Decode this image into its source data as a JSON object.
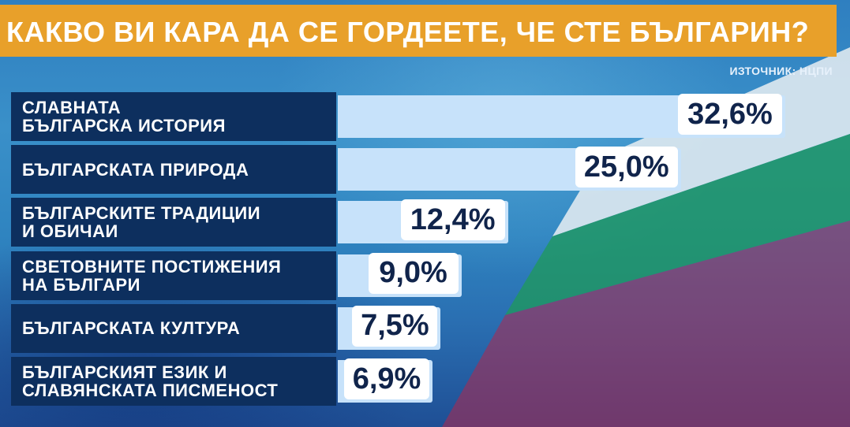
{
  "header": {
    "title": "КАКВО ВИ КАРА ДА СЕ ГОРДЕЕТЕ, ЧЕ СТЕ БЪЛГАРИН?",
    "source": "ИЗТОЧНИК: НЦПИ"
  },
  "colors": {
    "title_bar": "#e8a02a",
    "label_bg": "#0d2f5e",
    "bar": "#c7e2fa",
    "value_text": "#10244b"
  },
  "chart_data": {
    "type": "bar",
    "orientation": "horizontal",
    "title": "КАКВО ВИ КАРА ДА СЕ ГОРДЕЕТЕ, ЧЕ СТЕ БЪЛГАРИН?",
    "categories": [
      "СЛАВНАТА\nБЪЛГАРСКА ИСТОРИЯ",
      "БЪЛГАРСКАТА ПРИРОДА",
      "БЪЛГАРСКИТЕ ТРАДИЦИИ\nИ ОБИЧАИ",
      "СВЕТОВНИТЕ ПОСТИЖЕНИЯ\nНА БЪЛГАРИ",
      "БЪЛГАРСКАТА КУЛТУРА",
      "БЪЛГАРСКИЯТ ЕЗИК И\nСЛАВЯНСКАТА ПИСМЕНОСТ"
    ],
    "values": [
      32.6,
      25.0,
      12.4,
      9.0,
      7.5,
      6.9
    ],
    "value_labels": [
      "32,6%",
      "25,0%",
      "12,4%",
      "9,0%",
      "7,5%",
      "6,9%"
    ],
    "unit": "%",
    "xlim": [
      0,
      34.5
    ],
    "grid": false,
    "legend": "none"
  }
}
